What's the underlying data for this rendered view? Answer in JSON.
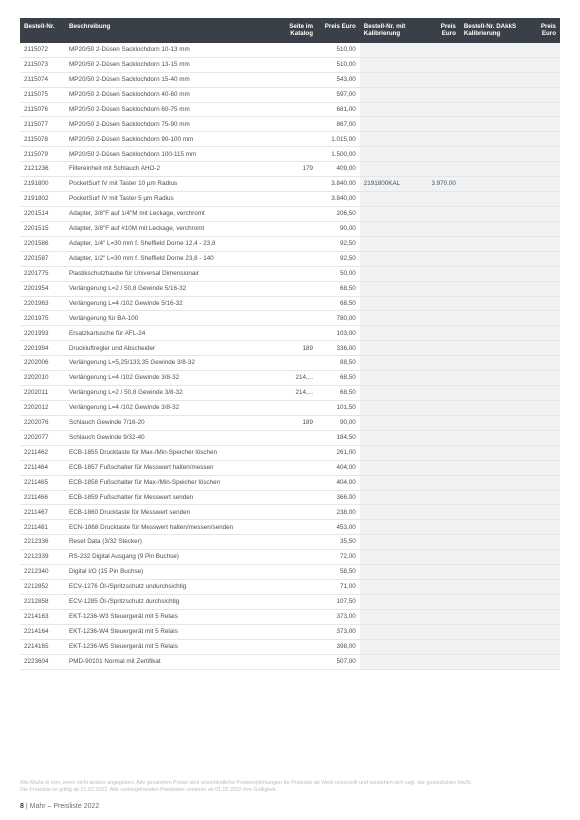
{
  "header": {
    "bestell": "Bestell-Nr.",
    "beschr": "Beschreibung",
    "seite": "Seite im\nKatalog",
    "preis": "Preis\nEuro",
    "kal_nr": "Bestell-Nr.\nmit Kalibrierung",
    "kal_pr": "Preis\nEuro",
    "dak_nr": "Bestell-Nr.\nDAkkS Kalibrierung",
    "dak_pr": "Preis\nEuro"
  },
  "rows": [
    {
      "nr": "2115072",
      "desc": "MP20/50 2-Düsen Sacklochdorn 10-13 mm",
      "seite": "",
      "preis": "510,00",
      "kalnr": "",
      "kalpr": "",
      "daknr": "",
      "dakpr": ""
    },
    {
      "nr": "2115073",
      "desc": "MP20/50 2-Düsen Sacklochdorn 13-15 mm",
      "seite": "",
      "preis": "510,00",
      "kalnr": "",
      "kalpr": "",
      "daknr": "",
      "dakpr": ""
    },
    {
      "nr": "2115074",
      "desc": "MP20/50 2-Düsen Sacklochdorn 15-40 mm",
      "seite": "",
      "preis": "543,00",
      "kalnr": "",
      "kalpr": "",
      "daknr": "",
      "dakpr": ""
    },
    {
      "nr": "2115075",
      "desc": "MP20/50 2-Düsen Sacklochdorn 40-60 mm",
      "seite": "",
      "preis": "597,00",
      "kalnr": "",
      "kalpr": "",
      "daknr": "",
      "dakpr": ""
    },
    {
      "nr": "2115076",
      "desc": "MP20/50 2-Düsen Sacklochdorn 60-75 mm",
      "seite": "",
      "preis": "681,00",
      "kalnr": "",
      "kalpr": "",
      "daknr": "",
      "dakpr": ""
    },
    {
      "nr": "2115077",
      "desc": "MP20/50 2-Düsen Sacklochdorn 75-90 mm",
      "seite": "",
      "preis": "867,00",
      "kalnr": "",
      "kalpr": "",
      "daknr": "",
      "dakpr": ""
    },
    {
      "nr": "2115078",
      "desc": "MP20/50 2-Düsen Sacklochdorn 90-100 mm",
      "seite": "",
      "preis": "1.015,00",
      "kalnr": "",
      "kalpr": "",
      "daknr": "",
      "dakpr": ""
    },
    {
      "nr": "2115079",
      "desc": "MP20/50 2-Düsen Sacklochdorn 100-115 mm",
      "seite": "",
      "preis": "1.500,00",
      "kalnr": "",
      "kalpr": "",
      "daknr": "",
      "dakpr": ""
    },
    {
      "nr": "2121236",
      "desc": "Filtereinheit mit Schlauch AHO-2",
      "seite": "179",
      "preis": "409,00",
      "kalnr": "",
      "kalpr": "",
      "daknr": "",
      "dakpr": ""
    },
    {
      "nr": "2191800",
      "desc": "PocketSurf IV mit Taster 10 µm Radius",
      "seite": "",
      "preis": "3.840,00",
      "kalnr": "2191800KAL",
      "kalpr": "3.970,00",
      "daknr": "",
      "dakpr": ""
    },
    {
      "nr": "2191802",
      "desc": "PocketSurf IV mit Taster 5 µm Radius",
      "seite": "",
      "preis": "3.840,00",
      "kalnr": "",
      "kalpr": "",
      "daknr": "",
      "dakpr": ""
    },
    {
      "nr": "2201514",
      "desc": "Adapter, 3/8\"F auf 1/4\"M mit Leckage, verchromt",
      "seite": "",
      "preis": "206,50",
      "kalnr": "",
      "kalpr": "",
      "daknr": "",
      "dakpr": ""
    },
    {
      "nr": "2201515",
      "desc": "Adapter, 3/8\"F auf #10M mit Leckage, verchromt",
      "seite": "",
      "preis": "90,00",
      "kalnr": "",
      "kalpr": "",
      "daknr": "",
      "dakpr": ""
    },
    {
      "nr": "2201586",
      "desc": "Adapter, 1/4\" L=30 mm f. Sheffield Dorne 12,4 - 23,8",
      "seite": "",
      "preis": "92,50",
      "kalnr": "",
      "kalpr": "",
      "daknr": "",
      "dakpr": ""
    },
    {
      "nr": "2201587",
      "desc": "Adapter, 1/2\" L=30 mm f. Sheffield Dorne 23,8 - 140",
      "seite": "",
      "preis": "92,50",
      "kalnr": "",
      "kalpr": "",
      "daknr": "",
      "dakpr": ""
    },
    {
      "nr": "2201775",
      "desc": "Plastikschutzhaube für Universal Dimensionair",
      "seite": "",
      "preis": "50,00",
      "kalnr": "",
      "kalpr": "",
      "daknr": "",
      "dakpr": ""
    },
    {
      "nr": "2201954",
      "desc": "Verlängerung L=2 / 50,8 Gewinde 5/16-32",
      "seite": "",
      "preis": "68,50",
      "kalnr": "",
      "kalpr": "",
      "daknr": "",
      "dakpr": ""
    },
    {
      "nr": "2201963",
      "desc": "Verlängerung L=4 /102 Gewinde 5/16-32",
      "seite": "",
      "preis": "68,50",
      "kalnr": "",
      "kalpr": "",
      "daknr": "",
      "dakpr": ""
    },
    {
      "nr": "2201975",
      "desc": "Verlängerung für BA-100",
      "seite": "",
      "preis": "780,00",
      "kalnr": "",
      "kalpr": "",
      "daknr": "",
      "dakpr": ""
    },
    {
      "nr": "2201993",
      "desc": "Ersatzkartusche für AFL-24",
      "seite": "",
      "preis": "103,00",
      "kalnr": "",
      "kalpr": "",
      "daknr": "",
      "dakpr": ""
    },
    {
      "nr": "2201994",
      "desc": "Druckluftregler und Abscheider",
      "seite": "189",
      "preis": "336,00",
      "kalnr": "",
      "kalpr": "",
      "daknr": "",
      "dakpr": ""
    },
    {
      "nr": "2202006",
      "desc": "Verlängerung L=5,25/133,35 Gewinde 3/8-32",
      "seite": "",
      "preis": "88,50",
      "kalnr": "",
      "kalpr": "",
      "daknr": "",
      "dakpr": ""
    },
    {
      "nr": "2202010",
      "desc": "Verlängerung L=4 /102 Gewinde 3/8-32",
      "seite": "214,...",
      "preis": "68,50",
      "kalnr": "",
      "kalpr": "",
      "daknr": "",
      "dakpr": ""
    },
    {
      "nr": "2202011",
      "desc": "Verlängerung L=2 / 50,8 Gewinde 3/8-32",
      "seite": "214,...",
      "preis": "68,50",
      "kalnr": "",
      "kalpr": "",
      "daknr": "",
      "dakpr": ""
    },
    {
      "nr": "2202012",
      "desc": "Verlängerung L=4 /102 Gewinde 3/8-32",
      "seite": "",
      "preis": "101,50",
      "kalnr": "",
      "kalpr": "",
      "daknr": "",
      "dakpr": ""
    },
    {
      "nr": "2202076",
      "desc": "Schlauch Gewinde 7/16-20",
      "seite": "189",
      "preis": "90,00",
      "kalnr": "",
      "kalpr": "",
      "daknr": "",
      "dakpr": ""
    },
    {
      "nr": "2202077",
      "desc": "Schlauch Gewinde 9/32-40",
      "seite": "",
      "preis": "184,50",
      "kalnr": "",
      "kalpr": "",
      "daknr": "",
      "dakpr": ""
    },
    {
      "nr": "2211462",
      "desc": "ECB-1855 Drucktaste für Max-/Min-Speicher löschen",
      "seite": "",
      "preis": "261,00",
      "kalnr": "",
      "kalpr": "",
      "daknr": "",
      "dakpr": ""
    },
    {
      "nr": "2211464",
      "desc": "ECB-1857 Fußschalter für Messwert halten/messen",
      "seite": "",
      "preis": "404,00",
      "kalnr": "",
      "kalpr": "",
      "daknr": "",
      "dakpr": ""
    },
    {
      "nr": "2211465",
      "desc": "ECB-1858 Fußschalter für Max-/Min-Speicher löschen",
      "seite": "",
      "preis": "404,00",
      "kalnr": "",
      "kalpr": "",
      "daknr": "",
      "dakpr": ""
    },
    {
      "nr": "2211466",
      "desc": "ECB-1859 Fußschalter für Messwert senden",
      "seite": "",
      "preis": "366,00",
      "kalnr": "",
      "kalpr": "",
      "daknr": "",
      "dakpr": ""
    },
    {
      "nr": "2211467",
      "desc": "ECB-1860 Drucktaste für Messwert senden",
      "seite": "",
      "preis": "238,00",
      "kalnr": "",
      "kalpr": "",
      "daknr": "",
      "dakpr": ""
    },
    {
      "nr": "2211481",
      "desc": "ECN-1868 Drucktaste für Messwert halten/messen/senden",
      "seite": "",
      "preis": "453,00",
      "kalnr": "",
      "kalpr": "",
      "daknr": "",
      "dakpr": ""
    },
    {
      "nr": "2212336",
      "desc": "Reset Data (3/32 Stecker)",
      "seite": "",
      "preis": "35,50",
      "kalnr": "",
      "kalpr": "",
      "daknr": "",
      "dakpr": ""
    },
    {
      "nr": "2212339",
      "desc": "RS-232 Digital Ausgang (9 Pin Buchse)",
      "seite": "",
      "preis": "72,00",
      "kalnr": "",
      "kalpr": "",
      "daknr": "",
      "dakpr": ""
    },
    {
      "nr": "2212340",
      "desc": "Digital I/O (15 Pin Buchse)",
      "seite": "",
      "preis": "58,50",
      "kalnr": "",
      "kalpr": "",
      "daknr": "",
      "dakpr": ""
    },
    {
      "nr": "2212852",
      "desc": "ECV-1276 Öl-/Spritzschutz undurchsichtig",
      "seite": "",
      "preis": "71,00",
      "kalnr": "",
      "kalpr": "",
      "daknr": "",
      "dakpr": ""
    },
    {
      "nr": "2212858",
      "desc": "ECV-1285 Öl-/Spritzschutz durchsichtig",
      "seite": "",
      "preis": "107,50",
      "kalnr": "",
      "kalpr": "",
      "daknr": "",
      "dakpr": ""
    },
    {
      "nr": "2214163",
      "desc": "EKT-1236-W3 Steuergerät mit 5 Relais",
      "seite": "",
      "preis": "373,00",
      "kalnr": "",
      "kalpr": "",
      "daknr": "",
      "dakpr": ""
    },
    {
      "nr": "2214164",
      "desc": "EKT-1236-W4 Steuergerät mit 5 Relais",
      "seite": "",
      "preis": "373,00",
      "kalnr": "",
      "kalpr": "",
      "daknr": "",
      "dakpr": ""
    },
    {
      "nr": "2214165",
      "desc": "EKT-1236-W5 Steuergerät mit 5 Relais",
      "seite": "",
      "preis": "398,00",
      "kalnr": "",
      "kalpr": "",
      "daknr": "",
      "dakpr": ""
    },
    {
      "nr": "2223604",
      "desc": "PMD-90101 Normal mit Zertifikat",
      "seite": "",
      "preis": "507,00",
      "kalnr": "",
      "kalpr": "",
      "daknr": "",
      "dakpr": ""
    }
  ],
  "footer": {
    "line1": "Alle Maße in mm, wenn nicht anders angegeben. Alle genannten Preise sind unverbindliche Preisempfehlungen für Produkte ab Werk unverzollt und verstehen sich zzgl. der gesetzlichen MwSt.",
    "line2": "Die Preisliste ist gültig ab 01.02.2022. Alle vorhergehenden Preislisten verlieren ab 01.02.2022 ihre Gültigkeit."
  },
  "pagenum": {
    "num": "8",
    "sep": "|",
    "title": "Mahr – Preisliste 2022"
  }
}
